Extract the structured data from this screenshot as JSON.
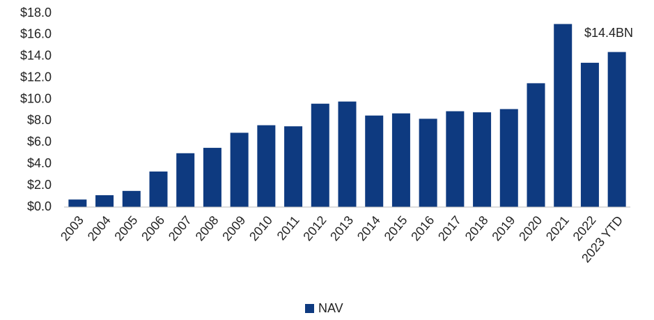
{
  "chart_data": {
    "type": "bar",
    "categories": [
      "2003",
      "2004",
      "2005",
      "2006",
      "2007",
      "2008",
      "2009",
      "2010",
      "2011",
      "2012",
      "2013",
      "2014",
      "2015",
      "2016",
      "2017",
      "2018",
      "2019",
      "2020",
      "2021",
      "2022",
      "2023 YTD"
    ],
    "series": [
      {
        "name": "NAV",
        "color": "#0e3a80",
        "values": [
          0.7,
          1.1,
          1.5,
          3.3,
          5.0,
          5.5,
          6.9,
          7.6,
          7.5,
          9.6,
          9.8,
          8.5,
          8.7,
          8.2,
          8.9,
          8.8,
          9.1,
          11.5,
          17.0,
          13.4,
          14.4
        ]
      }
    ],
    "ylim": [
      0,
      18
    ],
    "yticks": [
      {
        "value": 0,
        "label": "$0.0"
      },
      {
        "value": 2,
        "label": "$2.0"
      },
      {
        "value": 4,
        "label": "$4.0"
      },
      {
        "value": 6,
        "label": "$6.0"
      },
      {
        "value": 8,
        "label": "$8.0"
      },
      {
        "value": 10,
        "label": "$10.0"
      },
      {
        "value": 12,
        "label": "$12.0"
      },
      {
        "value": 14,
        "label": "$14.0"
      },
      {
        "value": 16,
        "label": "$16.0"
      },
      {
        "value": 18,
        "label": "$18.0"
      }
    ],
    "annotation": "$14.4BN",
    "grid": false,
    "legend": "bottom"
  }
}
